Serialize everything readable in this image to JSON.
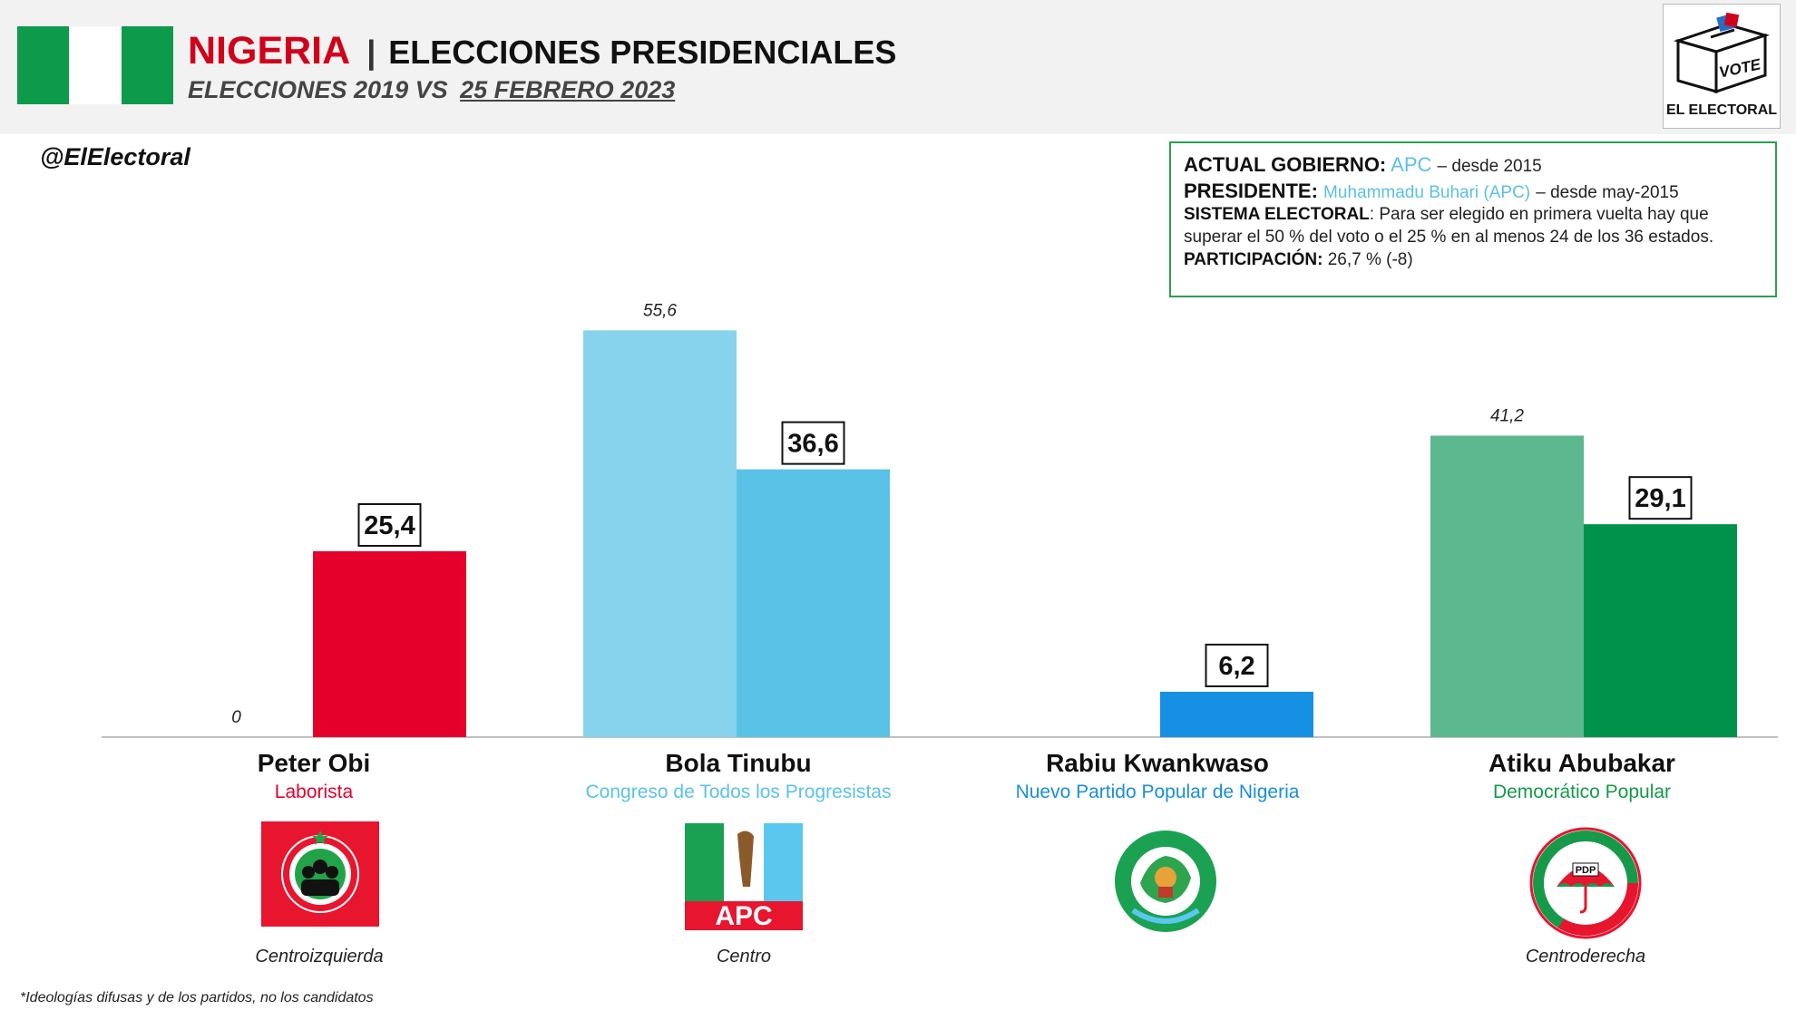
{
  "header": {
    "country": "NIGERIA",
    "separator": "|",
    "title": "ELECCIONES PRESIDENCIALES",
    "subtitle_prefix": "ELECCIONES 2019 VS",
    "subtitle_date": "25 FEBRERO 2023",
    "flag_colors": [
      "#0e9a4b",
      "#ffffff",
      "#0e9a4b"
    ]
  },
  "brand_logo": {
    "box_text": "VOTE",
    "name": "EL ELECTORAL"
  },
  "handle": "@ElElectoral",
  "info": {
    "gov_label": "ACTUAL GOBIERNO:",
    "gov_party": "APC",
    "gov_since": "– desde 2015",
    "pres_label": "PRESIDENTE:",
    "pres_name": "Muhammadu Buhari (APC)",
    "pres_since": "– desde may-2015",
    "system_label": "SISTEMA ELECTORAL",
    "system_text_1": ": Para ser elegido en primera vuelta hay que",
    "system_text_2": "superar el 50 % del voto o el 25 % en al menos 24 de los 36 estados.",
    "turnout_label": "PARTICIPACIÓN:",
    "turnout_value": "26,7 % (-8)",
    "accent_color": "#5bc0e5",
    "border_color": "#2e9e4f"
  },
  "chart_data": {
    "type": "bar",
    "title": "",
    "xlabel": "",
    "ylabel": "",
    "ylim": [
      0,
      60
    ],
    "categories": [
      "Peter Obi",
      "Bola Tinubu",
      "Rabiu Kwankwaso",
      "Atiku Abubakar"
    ],
    "series": [
      {
        "name": "2019",
        "values": [
          0,
          55.6,
          null,
          41.2
        ],
        "labels": [
          "0",
          "55,6",
          "",
          "41,2"
        ]
      },
      {
        "name": "2023",
        "values": [
          25.4,
          36.6,
          6.2,
          29.1
        ],
        "labels": [
          "25,4",
          "36,6",
          "6,2",
          "29,1"
        ]
      }
    ],
    "colors_2019": [
      "#e4002b",
      "#87d3ed",
      "#1590e3",
      "#5cb88e"
    ],
    "colors_2023": [
      "#e4002b",
      "#5bc2e7",
      "#1590e3",
      "#00924a"
    ]
  },
  "candidates": [
    {
      "name": "Peter Obi",
      "party": "Laborista",
      "party_color": "#e4002b",
      "ideology": "Centroizquierda",
      "logo": "labour-party-logo"
    },
    {
      "name": "Bola Tinubu",
      "party": "Congreso de Todos los Progresistas",
      "party_color": "#5bc2e7",
      "ideology": "Centro",
      "logo": "apc-logo",
      "logo_text": "APC"
    },
    {
      "name": "Rabiu Kwankwaso",
      "party": "Nuevo Partido Popular de Nigeria",
      "party_color": "#1a8fd6",
      "ideology": "",
      "logo": "nnpp-logo"
    },
    {
      "name": "Atiku Abubakar",
      "party": "Democrático Popular",
      "party_color": "#169a49",
      "ideology": "Centroderecha",
      "logo": "pdp-logo",
      "logo_text": "PDP"
    }
  ],
  "footnote": "*Ideologías difusas y de los partidos, no los candidatos"
}
